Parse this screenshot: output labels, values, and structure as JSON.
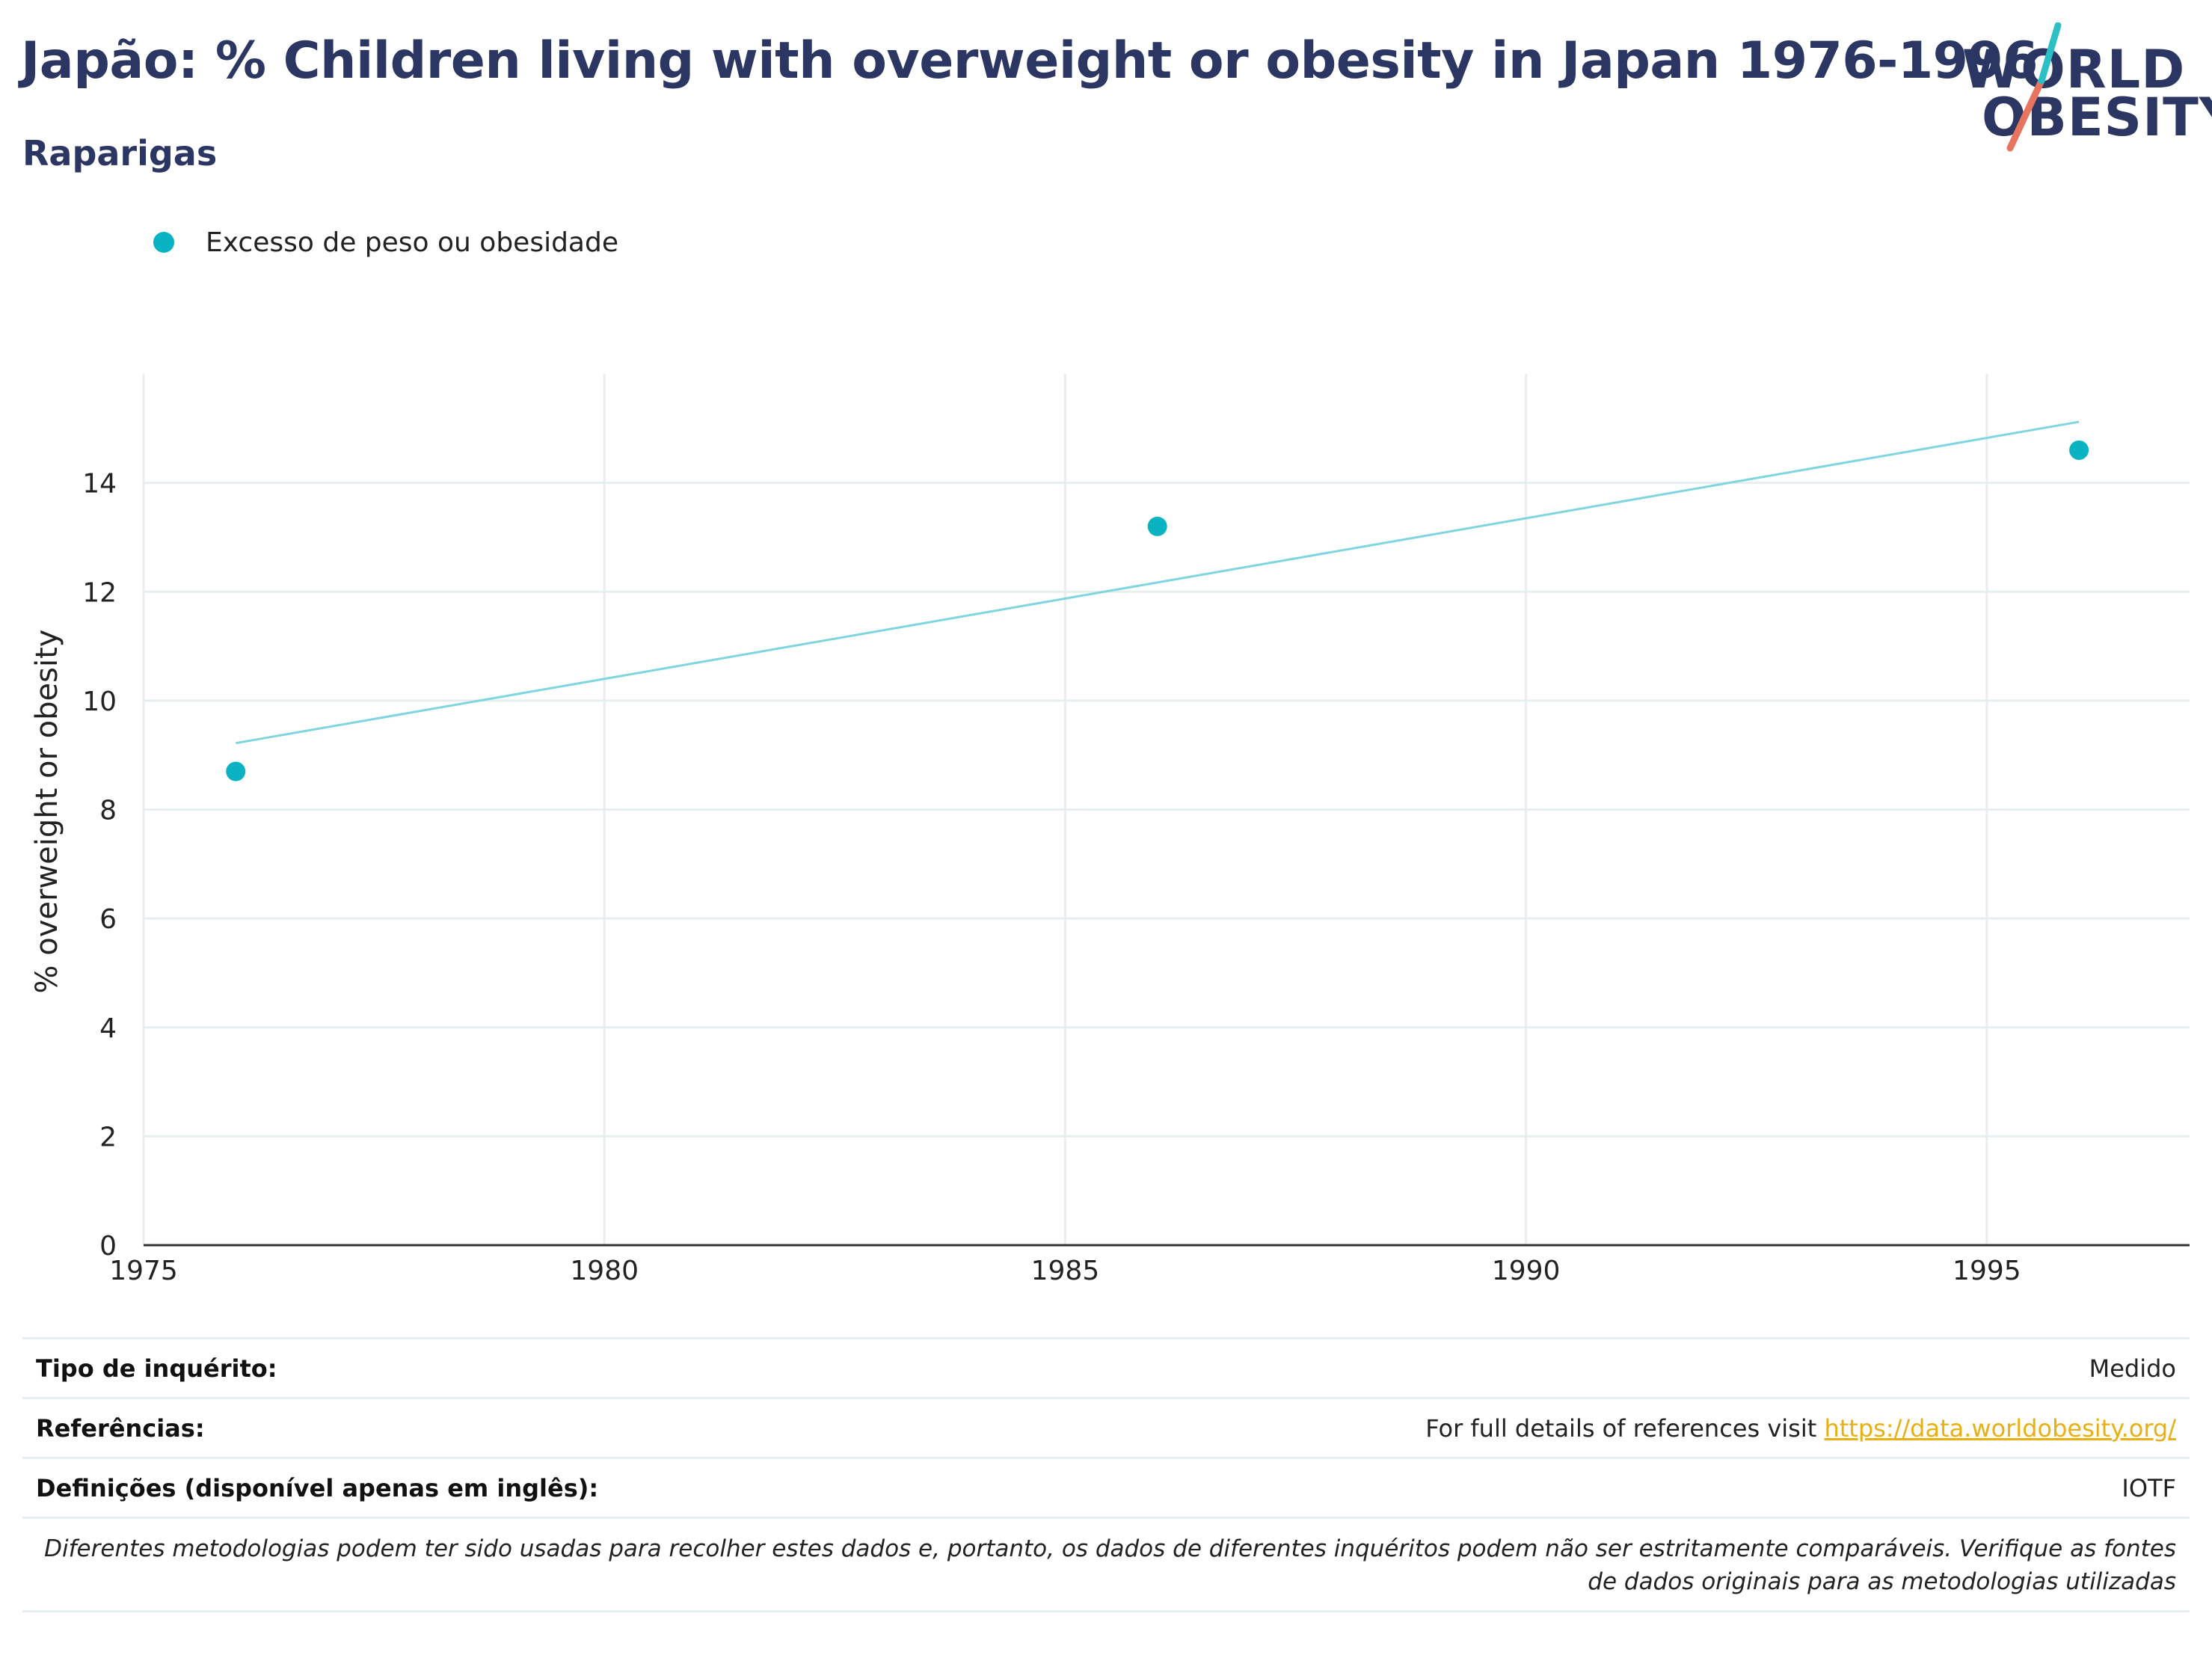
{
  "header": {
    "title": "Japão: % Children living with overweight or obesity in Japan 1976-1996",
    "subtitle": "Raparigas"
  },
  "logo": {
    "line1": "WORLD",
    "line2": "OBESITY"
  },
  "colors": {
    "series": "#0ab3c1",
    "trend": "#7fd6de",
    "title": "#2b3663",
    "link": "#e8b012",
    "grid": "#e8eef0"
  },
  "chart_data": {
    "type": "scatter",
    "title": "Japão: % Children living with overweight or obesity in Japan 1976-1996",
    "subtitle": "Raparigas",
    "xlabel": "",
    "ylabel": "% overweight or obesity",
    "xlim": [
      1975,
      1997.2
    ],
    "ylim": [
      0,
      16
    ],
    "xticks": [
      1975,
      1980,
      1985,
      1990,
      1995
    ],
    "yticks": [
      0,
      2,
      4,
      6,
      8,
      10,
      12,
      14
    ],
    "grid": true,
    "legend": "top-left",
    "series": [
      {
        "name": "Excesso de peso ou obesidade",
        "x": [
          1976,
          1986,
          1996
        ],
        "y": [
          8.7,
          13.2,
          14.6
        ]
      }
    ],
    "trendline": {
      "x": [
        1976,
        1996
      ],
      "y": [
        9.22,
        15.12
      ]
    }
  },
  "info": {
    "rows": [
      {
        "key": "Tipo de inquérito:",
        "value": "Medido"
      },
      {
        "key": "Referências:",
        "value": "For full details of references visit ",
        "link": "https://data.worldobesity.org/"
      },
      {
        "key": "Definições (disponível apenas em inglês):",
        "value": "IOTF"
      }
    ],
    "note_line1": "Diferentes metodologias podem ter sido usadas para recolher estes dados e, portanto, os dados de diferentes inquéritos podem não ser estritamente comparáveis. Verifique as fontes",
    "note_line2": "de dados originais para as metodologias utilizadas"
  }
}
